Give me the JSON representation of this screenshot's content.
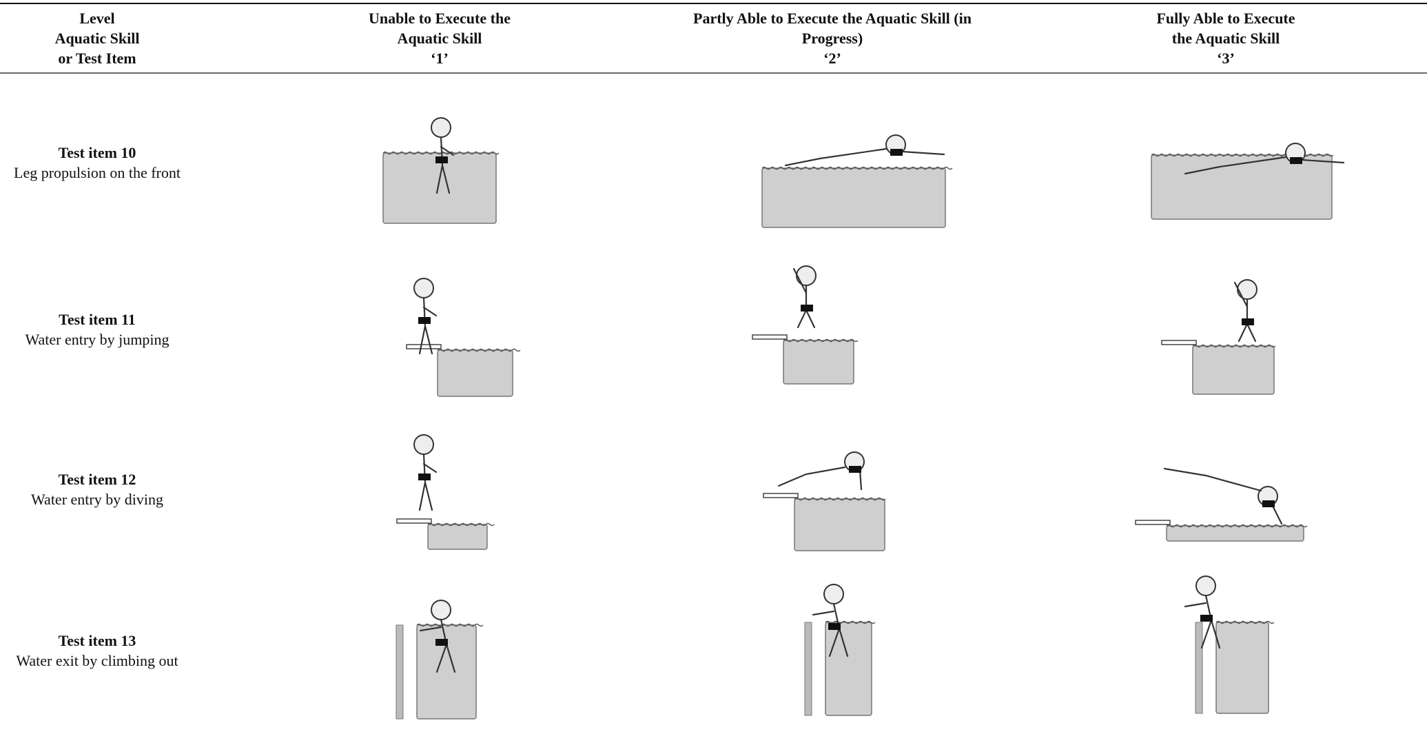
{
  "table": {
    "header": [
      [
        "Level",
        "Aquatic Skill",
        "or Test Item"
      ],
      [
        "Unable to Execute the",
        "Aquatic Skill",
        "‘1’"
      ],
      [
        "Partly Able to Execute the Aquatic Skill (in",
        "Progress)",
        "‘2’"
      ],
      [
        "Fully Able to Execute",
        "the Aquatic Skill",
        "‘3’"
      ]
    ],
    "rows": [
      {
        "item": "Test item 10",
        "skill": "Leg propulsion on the front"
      },
      {
        "item": "Test item 11",
        "skill": "Water entry by jumping"
      },
      {
        "item": "Test item 12",
        "skill": "Water entry by diving"
      },
      {
        "item": "Test item 13",
        "skill": "Water exit by climbing out"
      }
    ]
  }
}
